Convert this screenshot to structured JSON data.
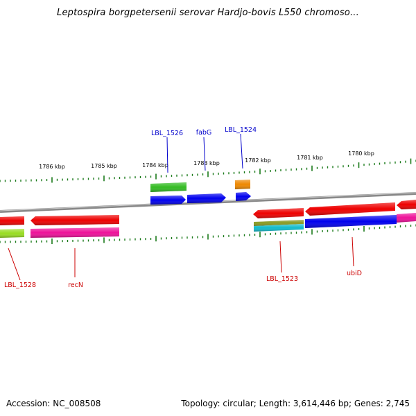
{
  "title": "Leptospira borgpetersenii serovar Hardjo-bovis L550 chromoso...",
  "footer": {
    "accession": "Accession: NC_008508",
    "topology": "Topology: circular; Length: 3,614,446 bp; Genes: 2,745"
  },
  "scale_labels": [
    "1786 kbp",
    "1785 kbp",
    "1784 kbp",
    "1783 kbp",
    "1782 kbp",
    "1781 kbp",
    "1780 kbp"
  ],
  "gene_labels_top": [
    "LBL_1526",
    "fabG",
    "LBL_1524"
  ],
  "gene_labels_bottom": [
    "LBL_1528",
    "recN",
    "LBL_1523",
    "ubiD"
  ],
  "colors": {
    "backbone": "#888888",
    "ticks": "#1a7a1a",
    "top_label": "#0000cc",
    "bottom_label": "#cc0000",
    "red": "#ee0000",
    "blue": "#0000ee",
    "green": "#33bb22",
    "orange": "#ee8800",
    "magenta": "#ee1199",
    "yellow_green": "#99dd22",
    "olive": "#889922",
    "cyan": "#11bbcc"
  }
}
